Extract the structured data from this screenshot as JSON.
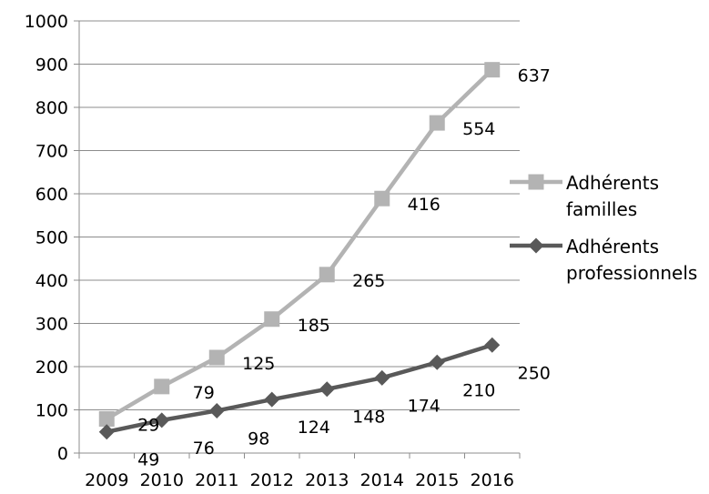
{
  "chart_data": {
    "type": "line",
    "categories": [
      "2009",
      "2010",
      "2011",
      "2012",
      "2013",
      "2014",
      "2015",
      "2016"
    ],
    "ylim": [
      0,
      1000
    ],
    "yticks": [
      0,
      100,
      200,
      300,
      400,
      500,
      600,
      700,
      800,
      900,
      1000
    ],
    "grid": true,
    "legend_position": "right",
    "series": [
      {
        "name": "Adhérents familles",
        "legend_lines": [
          "Adhérents",
          "familles"
        ],
        "values": [
          79,
          154,
          221,
          310,
          413,
          589,
          764,
          887
        ],
        "labels": [
          "29",
          "79",
          "125",
          "185",
          "265",
          "416",
          "554",
          "637"
        ],
        "color": "#b3b3b3",
        "marker": "square"
      },
      {
        "name": "Adhérents professionnels",
        "legend_lines": [
          "Adhérents",
          "professionnels"
        ],
        "values": [
          49,
          76,
          98,
          124,
          148,
          174,
          210,
          250
        ],
        "labels": [
          "49",
          "76",
          "98",
          "124",
          "148",
          "174",
          "210",
          "250"
        ],
        "color": "#595959",
        "marker": "diamond"
      }
    ]
  }
}
